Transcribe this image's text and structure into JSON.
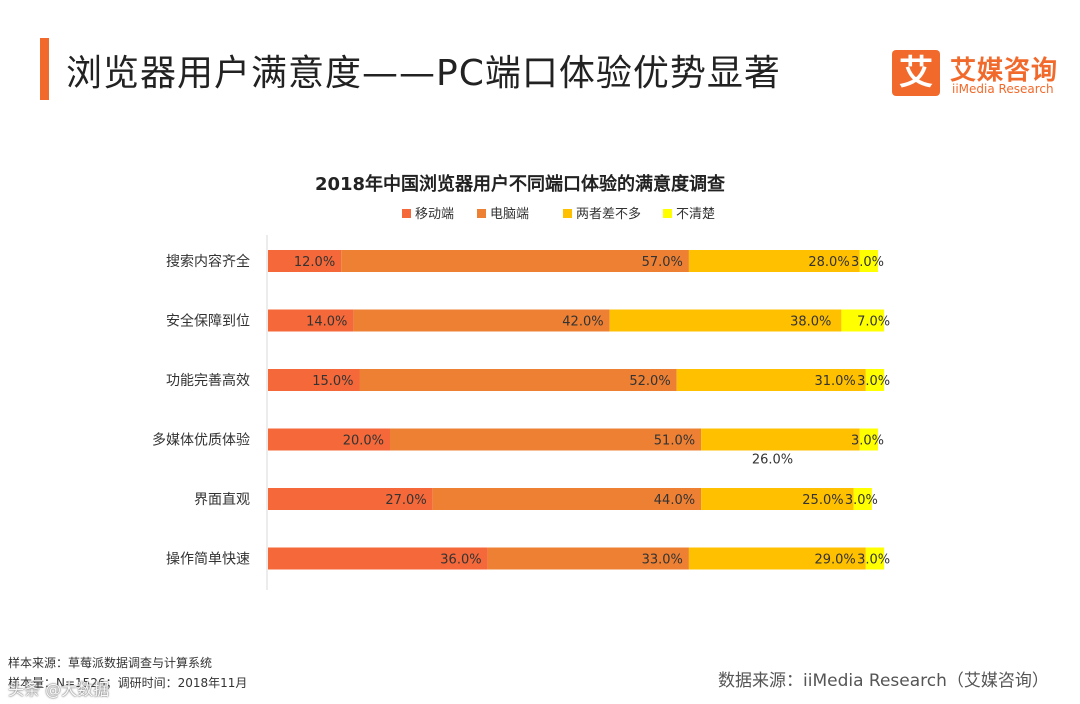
{
  "page": {
    "title": "浏览器用户满意度——PC端口体验优势显著"
  },
  "logo": {
    "mark": "艾",
    "name_cn": "艾媒咨询",
    "name_en": "iiMedia Research"
  },
  "footer": {
    "sample_source": "样本来源：草莓派数据调查与计算系统",
    "sample_info": "样本量：N=1526；调研时间：2018年11月",
    "data_source": "数据来源：iiMedia Research（艾媒咨询）",
    "watermark": "头条 @大数据"
  },
  "colors": {
    "accent": "#f26a2b"
  },
  "chart_data": {
    "type": "bar",
    "orientation": "horizontal",
    "stacked": true,
    "title": "2018年中国浏览器用户不同端口体验的满意度调查",
    "legend_position": "top",
    "xlabel": "",
    "ylabel": "",
    "xlim": [
      0,
      100
    ],
    "categories": [
      "搜索内容齐全",
      "安全保障到位",
      "功能完善高效",
      "多媒体优质体验",
      "界面直观",
      "操作简单快速"
    ],
    "series": [
      {
        "name": "移动端",
        "color": "#f4683a",
        "values": [
          12.0,
          14.0,
          15.0,
          20.0,
          27.0,
          36.0
        ]
      },
      {
        "name": "电脑端",
        "color": "#ee8034",
        "values": [
          57.0,
          42.0,
          52.0,
          51.0,
          44.0,
          33.0
        ]
      },
      {
        "name": "两者差不多",
        "color": "#ffc000",
        "values": [
          28.0,
          38.0,
          31.0,
          26.0,
          25.0,
          29.0
        ]
      },
      {
        "name": "不清楚",
        "color": "#ffff00",
        "values": [
          3.0,
          7.0,
          3.0,
          3.0,
          3.0,
          3.0
        ]
      }
    ],
    "value_labels": [
      [
        "12.0%",
        "57.0%",
        "28.0%",
        "3.0%"
      ],
      [
        "14.0%",
        "42.0%",
        "38.0%",
        "7.0%"
      ],
      [
        "15.0%",
        "52.0%",
        "31.0%",
        "3.0%"
      ],
      [
        "20.0%",
        "51.0%",
        "26.0%",
        "3.0%"
      ],
      [
        "27.0%",
        "44.0%",
        "25.0%",
        "3.0%"
      ],
      [
        "36.0%",
        "33.0%",
        "29.0%",
        "3.0%"
      ]
    ]
  }
}
